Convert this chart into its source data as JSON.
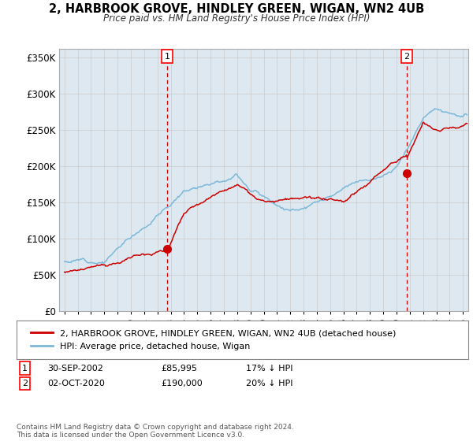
{
  "title1": "2, HARBROOK GROVE, HINDLEY GREEN, WIGAN, WN2 4UB",
  "title2": "Price paid vs. HM Land Registry's House Price Index (HPI)",
  "ylabel_ticks": [
    "£0",
    "£50K",
    "£100K",
    "£150K",
    "£200K",
    "£250K",
    "£300K",
    "£350K"
  ],
  "ytick_values": [
    0,
    50000,
    100000,
    150000,
    200000,
    250000,
    300000,
    350000
  ],
  "ylim": [
    0,
    362000
  ],
  "xlim_start": 1994.6,
  "xlim_end": 2025.4,
  "hpi_color": "#7db8d8",
  "price_color": "#cc0000",
  "vline_color": "#dd0000",
  "marker1_year": 2002.75,
  "marker1_price": 85995,
  "marker2_year": 2020.75,
  "marker2_price": 190000,
  "legend_label1": "2, HARBROOK GROVE, HINDLEY GREEN, WIGAN, WN2 4UB (detached house)",
  "legend_label2": "HPI: Average price, detached house, Wigan",
  "annotation1_label": "1",
  "annotation2_label": "2",
  "table_row1": [
    "1",
    "30-SEP-2002",
    "£85,995",
    "17% ↓ HPI"
  ],
  "table_row2": [
    "2",
    "02-OCT-2020",
    "£190,000",
    "20% ↓ HPI"
  ],
  "footnote": "Contains HM Land Registry data © Crown copyright and database right 2024.\nThis data is licensed under the Open Government Licence v3.0.",
  "grid_color": "#cccccc",
  "bg_color": "#dde8f0"
}
